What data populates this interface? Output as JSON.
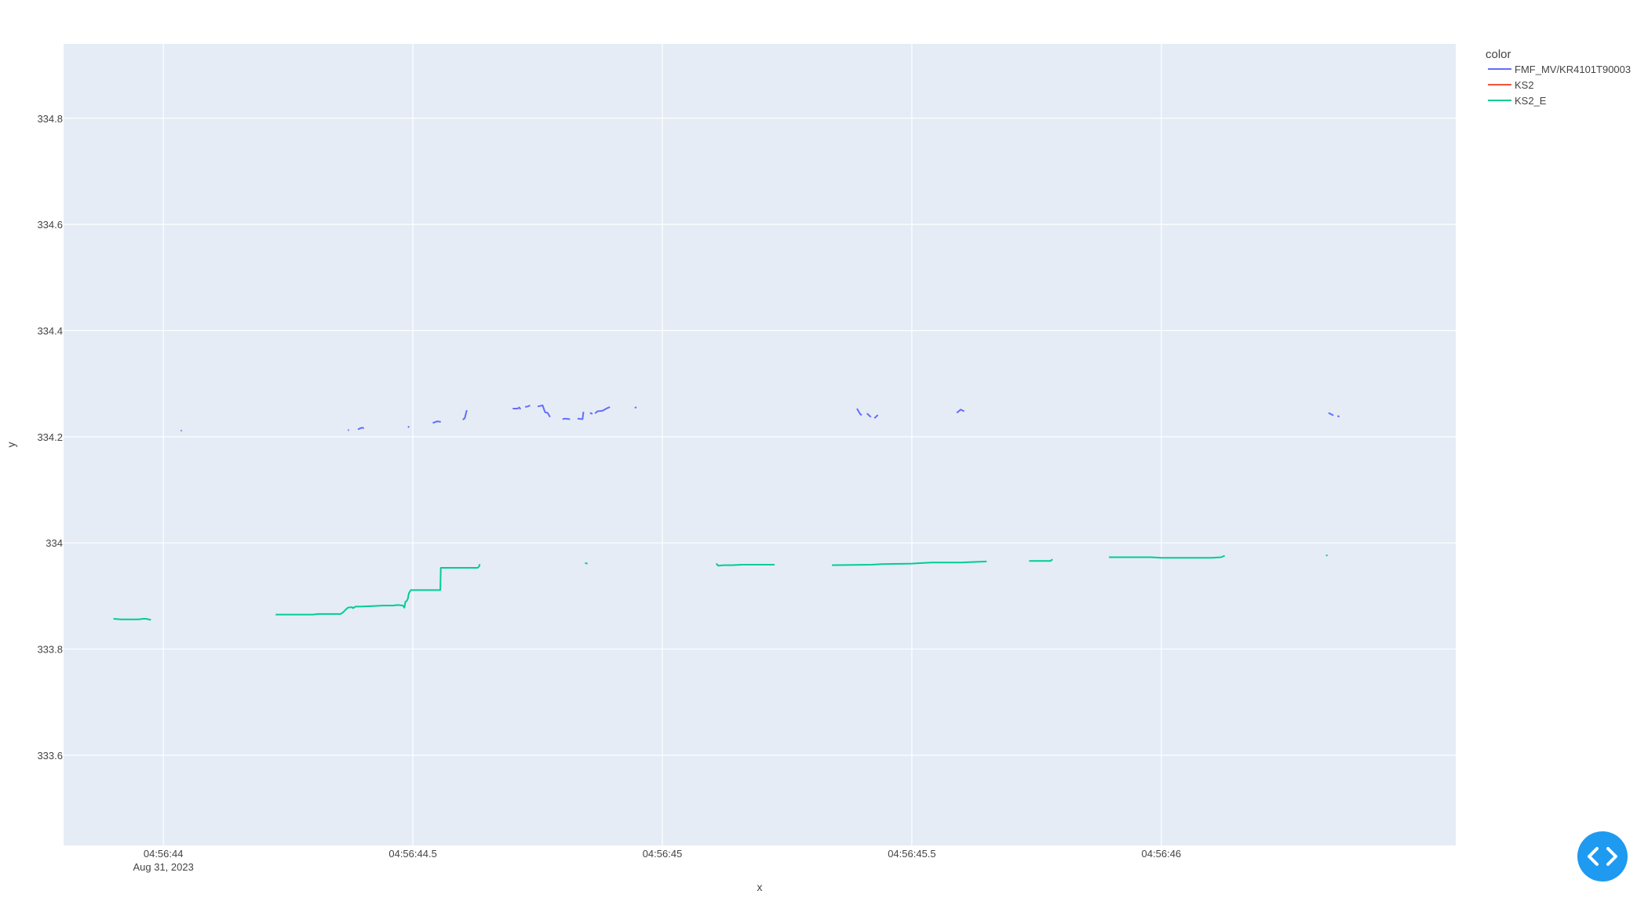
{
  "chart_data": {
    "type": "line",
    "title": "",
    "xlabel": "x",
    "ylabel": "y",
    "x_type": "time-seconds",
    "x_range_sec": [
      2623.8,
      2626.59
    ],
    "ylim": [
      333.43,
      334.94
    ],
    "x_ticks": [
      {
        "value": 2624.0,
        "label": "04:56:44",
        "sublabel": "Aug 31, 2023"
      },
      {
        "value": 2624.5,
        "label": "04:56:44.5",
        "sublabel": ""
      },
      {
        "value": 2625.0,
        "label": "04:56:45",
        "sublabel": ""
      },
      {
        "value": 2625.5,
        "label": "04:56:45.5",
        "sublabel": ""
      },
      {
        "value": 2626.0,
        "label": "04:56:46",
        "sublabel": ""
      }
    ],
    "y_ticks": [
      {
        "value": 333.6,
        "label": "333.6"
      },
      {
        "value": 333.8,
        "label": "333.8"
      },
      {
        "value": 334.0,
        "label": "334"
      },
      {
        "value": 334.2,
        "label": "334.2"
      },
      {
        "value": 334.4,
        "label": "334.4"
      },
      {
        "value": 334.6,
        "label": "334.6"
      },
      {
        "value": 334.8,
        "label": "334.8"
      }
    ],
    "legend_title": "color",
    "legend_position": "top-right",
    "series": [
      {
        "name": "FMF_MV/KR4101T90003",
        "color": "#636efa",
        "segments": [
          [
            [
              2624.035,
              334.212
            ],
            [
              2624.037,
              334.211
            ]
          ],
          [
            [
              2624.37,
              334.213
            ],
            [
              2624.372,
              334.212
            ]
          ],
          [
            [
              2624.39,
              334.214
            ],
            [
              2624.398,
              334.217
            ],
            [
              2624.402,
              334.216
            ]
          ],
          [
            [
              2624.49,
              334.219
            ],
            [
              2624.493,
              334.218
            ]
          ],
          [
            [
              2624.54,
              334.226
            ],
            [
              2624.549,
              334.229
            ],
            [
              2624.556,
              334.228
            ]
          ],
          [
            [
              2624.6,
              334.232
            ],
            [
              2624.604,
              334.235
            ],
            [
              2624.608,
              334.25
            ]
          ],
          [
            [
              2624.7,
              334.253
            ],
            [
              2624.71,
              334.253
            ],
            [
              2624.713,
              334.255
            ],
            [
              2624.716,
              334.252
            ]
          ],
          [
            [
              2624.725,
              334.256
            ],
            [
              2624.73,
              334.257
            ],
            [
              2624.735,
              334.259
            ]
          ],
          [
            [
              2624.75,
              334.257
            ],
            [
              2624.76,
              334.259
            ],
            [
              2624.765,
              334.246
            ],
            [
              2624.77,
              334.245
            ],
            [
              2624.775,
              334.237
            ]
          ],
          [
            [
              2624.8,
              334.233
            ],
            [
              2624.805,
              334.234
            ],
            [
              2624.815,
              334.233
            ]
          ],
          [
            [
              2624.83,
              334.234
            ],
            [
              2624.84,
              334.233
            ],
            [
              2624.842,
              334.247
            ]
          ],
          [
            [
              2624.855,
              334.245
            ],
            [
              2624.86,
              334.243
            ]
          ],
          [
            [
              2624.865,
              334.244
            ],
            [
              2624.87,
              334.248
            ],
            [
              2624.88,
              334.249
            ],
            [
              2624.89,
              334.254
            ],
            [
              2624.895,
              334.256
            ]
          ],
          [
            [
              2624.945,
              334.254
            ],
            [
              2624.948,
              334.256
            ]
          ],
          [
            [
              2625.39,
              334.253
            ],
            [
              2625.397,
              334.242
            ],
            [
              2625.4,
              334.241
            ]
          ],
          [
            [
              2625.41,
              334.244
            ],
            [
              2625.418,
              334.237
            ]
          ],
          [
            [
              2625.425,
              334.235
            ],
            [
              2625.432,
              334.241
            ]
          ],
          [
            [
              2625.59,
              334.245
            ],
            [
              2625.598,
              334.251
            ],
            [
              2625.605,
              334.248
            ]
          ],
          [
            [
              2626.335,
              334.245
            ],
            [
              2626.345,
              334.24
            ]
          ],
          [
            [
              2626.353,
              334.239
            ],
            [
              2626.357,
              334.238
            ]
          ]
        ]
      },
      {
        "name": "KS2",
        "color": "#ef553b",
        "segments": []
      },
      {
        "name": "KS2_E",
        "color": "#00cc96",
        "segments": [
          [
            [
              2623.9,
              333.857
            ],
            [
              2623.915,
              333.856
            ],
            [
              2623.95,
              333.856
            ],
            [
              2623.96,
              333.857
            ],
            [
              2623.965,
              333.857
            ],
            [
              2623.975,
              333.855
            ]
          ],
          [
            [
              2624.225,
              333.865
            ],
            [
              2624.3,
              333.865
            ],
            [
              2624.31,
              333.866
            ],
            [
              2624.355,
              333.866
            ],
            [
              2624.36,
              333.869
            ],
            [
              2624.365,
              333.874
            ],
            [
              2624.37,
              333.878
            ],
            [
              2624.378,
              333.879
            ],
            [
              2624.38,
              333.877
            ],
            [
              2624.385,
              333.88
            ],
            [
              2624.395,
              333.88
            ],
            [
              2624.42,
              333.881
            ],
            [
              2624.44,
              333.882
            ],
            [
              2624.46,
              333.882
            ],
            [
              2624.47,
              333.883
            ],
            [
              2624.48,
              333.882
            ],
            [
              2624.483,
              333.878
            ],
            [
              2624.485,
              333.889
            ],
            [
              2624.488,
              333.891
            ],
            [
              2624.49,
              333.895
            ],
            [
              2624.492,
              333.905
            ],
            [
              2624.496,
              333.911
            ],
            [
              2624.52,
              333.911
            ],
            [
              2624.555,
              333.911
            ],
            [
              2624.556,
              333.953
            ],
            [
              2624.6,
              333.953
            ],
            [
              2624.63,
              333.953
            ],
            [
              2624.633,
              333.956
            ],
            [
              2624.634,
              333.96
            ]
          ],
          [
            [
              2624.845,
              333.962
            ],
            [
              2624.85,
              333.961
            ]
          ],
          [
            [
              2625.108,
              333.961
            ],
            [
              2625.112,
              333.957
            ],
            [
              2625.125,
              333.958
            ],
            [
              2625.14,
              333.958
            ],
            [
              2625.16,
              333.959
            ],
            [
              2625.225,
              333.959
            ]
          ],
          [
            [
              2625.34,
              333.958
            ],
            [
              2625.42,
              333.959
            ],
            [
              2625.44,
              333.96
            ],
            [
              2625.5,
              333.961
            ],
            [
              2625.52,
              333.962
            ],
            [
              2625.54,
              333.963
            ],
            [
              2625.6,
              333.963
            ],
            [
              2625.62,
              333.964
            ],
            [
              2625.65,
              333.965
            ]
          ],
          [
            [
              2625.735,
              333.966
            ],
            [
              2625.778,
              333.966
            ],
            [
              2625.782,
              333.969
            ]
          ],
          [
            [
              2625.895,
              333.973
            ],
            [
              2625.98,
              333.973
            ],
            [
              2626.0,
              333.972
            ],
            [
              2626.1,
              333.972
            ],
            [
              2626.12,
              333.973
            ],
            [
              2626.127,
              333.976
            ]
          ],
          [
            [
              2626.33,
              333.976
            ],
            [
              2626.333,
              333.977
            ]
          ]
        ]
      }
    ]
  },
  "ui": {
    "code_button_icon": "code-brackets-icon"
  }
}
